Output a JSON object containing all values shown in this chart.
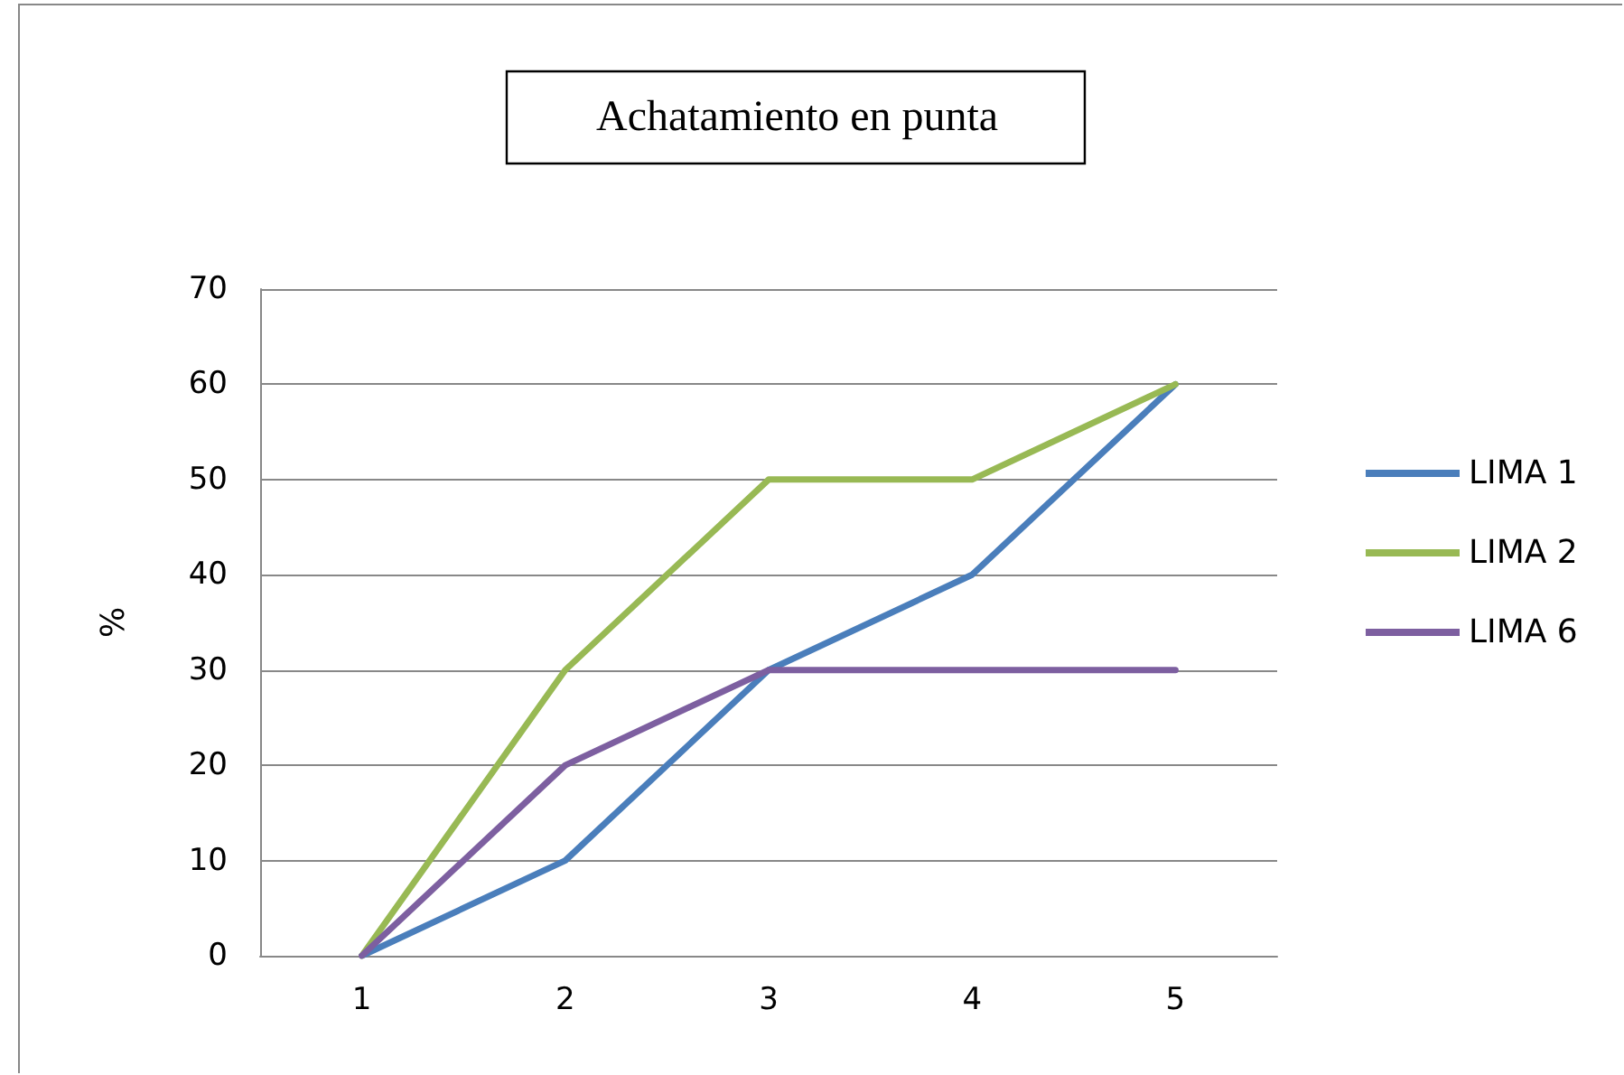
{
  "chart_data": {
    "type": "line",
    "title": "Achatamiento en punta",
    "ylabel": "%",
    "categories": [
      "1",
      "2",
      "3",
      "4",
      "5"
    ],
    "series": [
      {
        "name": "LIMA 1",
        "color": "#4a7ebb",
        "values": [
          0,
          10,
          30,
          40,
          60
        ]
      },
      {
        "name": "LIMA 2",
        "color": "#98b954",
        "values": [
          0,
          30,
          50,
          50,
          60
        ]
      },
      {
        "name": "LIMA 6",
        "color": "#7d5fa0",
        "values": [
          0,
          20,
          30,
          30,
          30
        ]
      }
    ],
    "ylim": [
      0,
      70
    ],
    "yticks": [
      0,
      10,
      20,
      30,
      40,
      50,
      60,
      70
    ],
    "grid": "y",
    "legend": "right",
    "marker": "none",
    "line_style": "solid"
  }
}
